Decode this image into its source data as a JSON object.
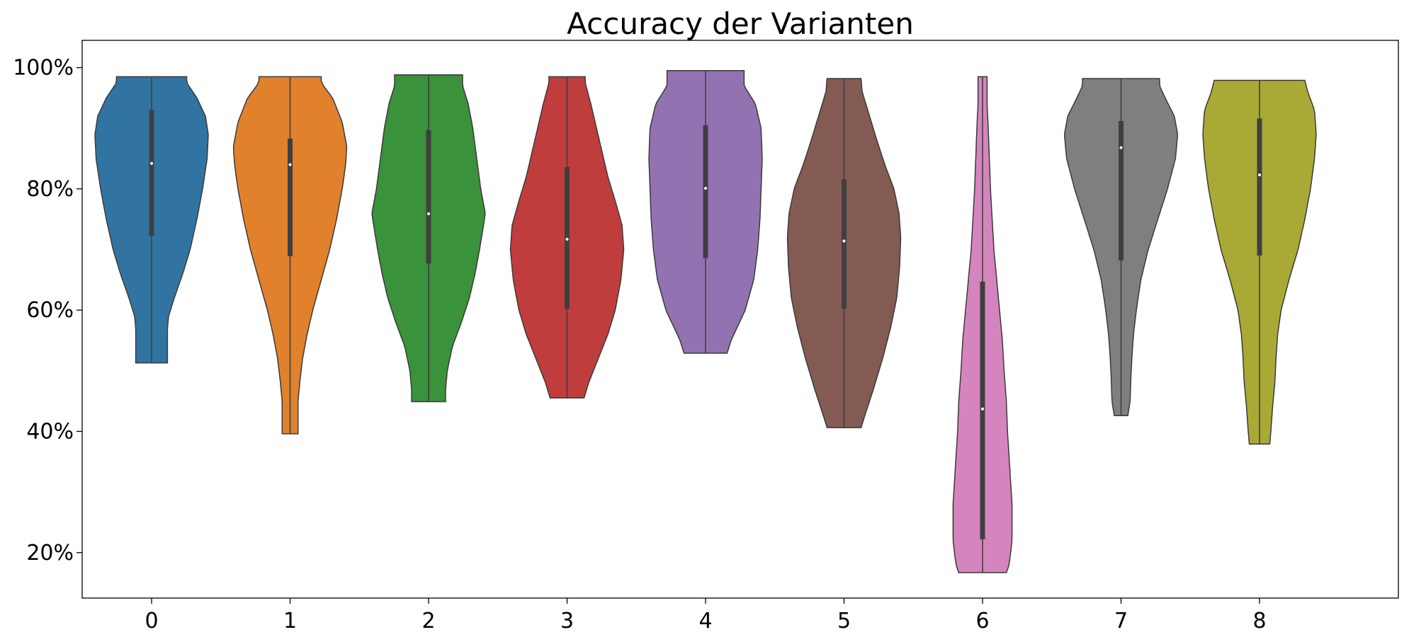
{
  "chart_data": {
    "type": "violin",
    "title": "Accuracy der Varianten",
    "xlabel": "",
    "ylabel": "",
    "ylim": [
      12.5,
      104.5
    ],
    "y_ticks": [
      20,
      40,
      60,
      80,
      100
    ],
    "y_tick_labels": [
      "20%",
      "40%",
      "60%",
      "80%",
      "100%"
    ],
    "categories": [
      "0",
      "1",
      "2",
      "3",
      "4",
      "5",
      "6",
      "7",
      "8"
    ],
    "colors": [
      "#3274a1",
      "#e1812c",
      "#3a923a",
      "#c03d3e",
      "#9372b2",
      "#845b53",
      "#d684bd",
      "#7f7f7f",
      "#a9aa35"
    ],
    "grid": false,
    "legend": "none",
    "series": [
      {
        "min": 51.3,
        "max": 98.5,
        "q1": 72.3,
        "median": 84.2,
        "q3": 93.0,
        "profile": [
          [
            51.3,
            0.28
          ],
          [
            54,
            0.28
          ],
          [
            57,
            0.28
          ],
          [
            59,
            0.3
          ],
          [
            62,
            0.4
          ],
          [
            66,
            0.55
          ],
          [
            70,
            0.68
          ],
          [
            75,
            0.8
          ],
          [
            80,
            0.9
          ],
          [
            85,
            0.98
          ],
          [
            89,
            1.0
          ],
          [
            92,
            0.95
          ],
          [
            95,
            0.8
          ],
          [
            97.5,
            0.62
          ],
          [
            98.5,
            0.62
          ]
        ]
      },
      {
        "min": 39.6,
        "max": 98.5,
        "q1": 68.9,
        "median": 84.0,
        "q3": 88.3,
        "profile": [
          [
            39.6,
            0.14
          ],
          [
            42,
            0.14
          ],
          [
            45,
            0.14
          ],
          [
            48,
            0.17
          ],
          [
            52,
            0.22
          ],
          [
            56,
            0.3
          ],
          [
            60,
            0.4
          ],
          [
            65,
            0.55
          ],
          [
            70,
            0.7
          ],
          [
            75,
            0.82
          ],
          [
            80,
            0.92
          ],
          [
            84,
            0.98
          ],
          [
            87,
            1.0
          ],
          [
            91,
            0.92
          ],
          [
            95,
            0.75
          ],
          [
            97.5,
            0.55
          ],
          [
            98.5,
            0.55
          ]
        ]
      },
      {
        "min": 44.9,
        "max": 98.8,
        "q1": 67.7,
        "median": 75.9,
        "q3": 89.7,
        "profile": [
          [
            44.9,
            0.3
          ],
          [
            47,
            0.3
          ],
          [
            50,
            0.33
          ],
          [
            54,
            0.42
          ],
          [
            58,
            0.58
          ],
          [
            62,
            0.72
          ],
          [
            66,
            0.82
          ],
          [
            70,
            0.9
          ],
          [
            74,
            0.97
          ],
          [
            76,
            1.0
          ],
          [
            80,
            0.92
          ],
          [
            85,
            0.85
          ],
          [
            90,
            0.78
          ],
          [
            94,
            0.7
          ],
          [
            97,
            0.6
          ],
          [
            98.8,
            0.6
          ]
        ]
      },
      {
        "min": 45.5,
        "max": 98.5,
        "q1": 60.2,
        "median": 71.7,
        "q3": 83.6,
        "profile": [
          [
            45.5,
            0.3
          ],
          [
            48,
            0.38
          ],
          [
            52,
            0.55
          ],
          [
            56,
            0.72
          ],
          [
            60,
            0.85
          ],
          [
            65,
            0.95
          ],
          [
            70,
            1.0
          ],
          [
            74,
            0.97
          ],
          [
            78,
            0.85
          ],
          [
            82,
            0.72
          ],
          [
            86,
            0.62
          ],
          [
            90,
            0.52
          ],
          [
            94,
            0.42
          ],
          [
            97.5,
            0.32
          ],
          [
            98.5,
            0.32
          ]
        ]
      },
      {
        "min": 52.9,
        "max": 99.5,
        "q1": 68.6,
        "median": 80.1,
        "q3": 90.5,
        "profile": [
          [
            52.9,
            0.38
          ],
          [
            55,
            0.45
          ],
          [
            60,
            0.7
          ],
          [
            65,
            0.85
          ],
          [
            70,
            0.92
          ],
          [
            75,
            0.96
          ],
          [
            80,
            0.98
          ],
          [
            85,
            1.0
          ],
          [
            90,
            0.98
          ],
          [
            94,
            0.88
          ],
          [
            97,
            0.68
          ],
          [
            99.5,
            0.68
          ]
        ]
      },
      {
        "min": 40.6,
        "max": 98.2,
        "q1": 60.2,
        "median": 71.4,
        "q3": 81.6,
        "profile": [
          [
            40.6,
            0.3
          ],
          [
            43,
            0.38
          ],
          [
            47,
            0.52
          ],
          [
            52,
            0.68
          ],
          [
            57,
            0.82
          ],
          [
            62,
            0.93
          ],
          [
            67,
            0.98
          ],
          [
            72,
            1.0
          ],
          [
            76,
            0.97
          ],
          [
            80,
            0.88
          ],
          [
            84,
            0.72
          ],
          [
            88,
            0.58
          ],
          [
            92,
            0.45
          ],
          [
            96,
            0.32
          ],
          [
            98.2,
            0.3
          ]
        ]
      },
      {
        "min": 16.7,
        "max": 98.5,
        "q1": 22.2,
        "median": 43.7,
        "q3": 64.7,
        "profile": [
          [
            16.7,
            0.42
          ],
          [
            18,
            0.47
          ],
          [
            22,
            0.52
          ],
          [
            28,
            0.52
          ],
          [
            34,
            0.48
          ],
          [
            40,
            0.44
          ],
          [
            45,
            0.42
          ],
          [
            50,
            0.38
          ],
          [
            55,
            0.35
          ],
          [
            60,
            0.3
          ],
          [
            65,
            0.25
          ],
          [
            70,
            0.2
          ],
          [
            75,
            0.17
          ],
          [
            80,
            0.14
          ],
          [
            85,
            0.12
          ],
          [
            90,
            0.1
          ],
          [
            94,
            0.08
          ],
          [
            98.5,
            0.08
          ]
        ]
      },
      {
        "min": 42.6,
        "max": 98.2,
        "q1": 68.2,
        "median": 86.8,
        "q3": 91.2,
        "profile": [
          [
            42.6,
            0.12
          ],
          [
            45,
            0.16
          ],
          [
            48,
            0.17
          ],
          [
            52,
            0.19
          ],
          [
            56,
            0.22
          ],
          [
            60,
            0.27
          ],
          [
            65,
            0.35
          ],
          [
            70,
            0.48
          ],
          [
            75,
            0.65
          ],
          [
            80,
            0.82
          ],
          [
            85,
            0.96
          ],
          [
            89,
            1.0
          ],
          [
            92,
            0.94
          ],
          [
            95,
            0.78
          ],
          [
            97,
            0.68
          ],
          [
            98.2,
            0.68
          ]
        ]
      },
      {
        "min": 37.9,
        "max": 97.9,
        "q1": 69.0,
        "median": 82.3,
        "q3": 91.6,
        "profile": [
          [
            37.9,
            0.18
          ],
          [
            40,
            0.2
          ],
          [
            44,
            0.23
          ],
          [
            48,
            0.27
          ],
          [
            52,
            0.29
          ],
          [
            56,
            0.32
          ],
          [
            60,
            0.38
          ],
          [
            65,
            0.52
          ],
          [
            70,
            0.68
          ],
          [
            75,
            0.8
          ],
          [
            80,
            0.9
          ],
          [
            85,
            0.97
          ],
          [
            89,
            1.0
          ],
          [
            93,
            0.97
          ],
          [
            96,
            0.85
          ],
          [
            97.9,
            0.8
          ]
        ]
      }
    ]
  }
}
